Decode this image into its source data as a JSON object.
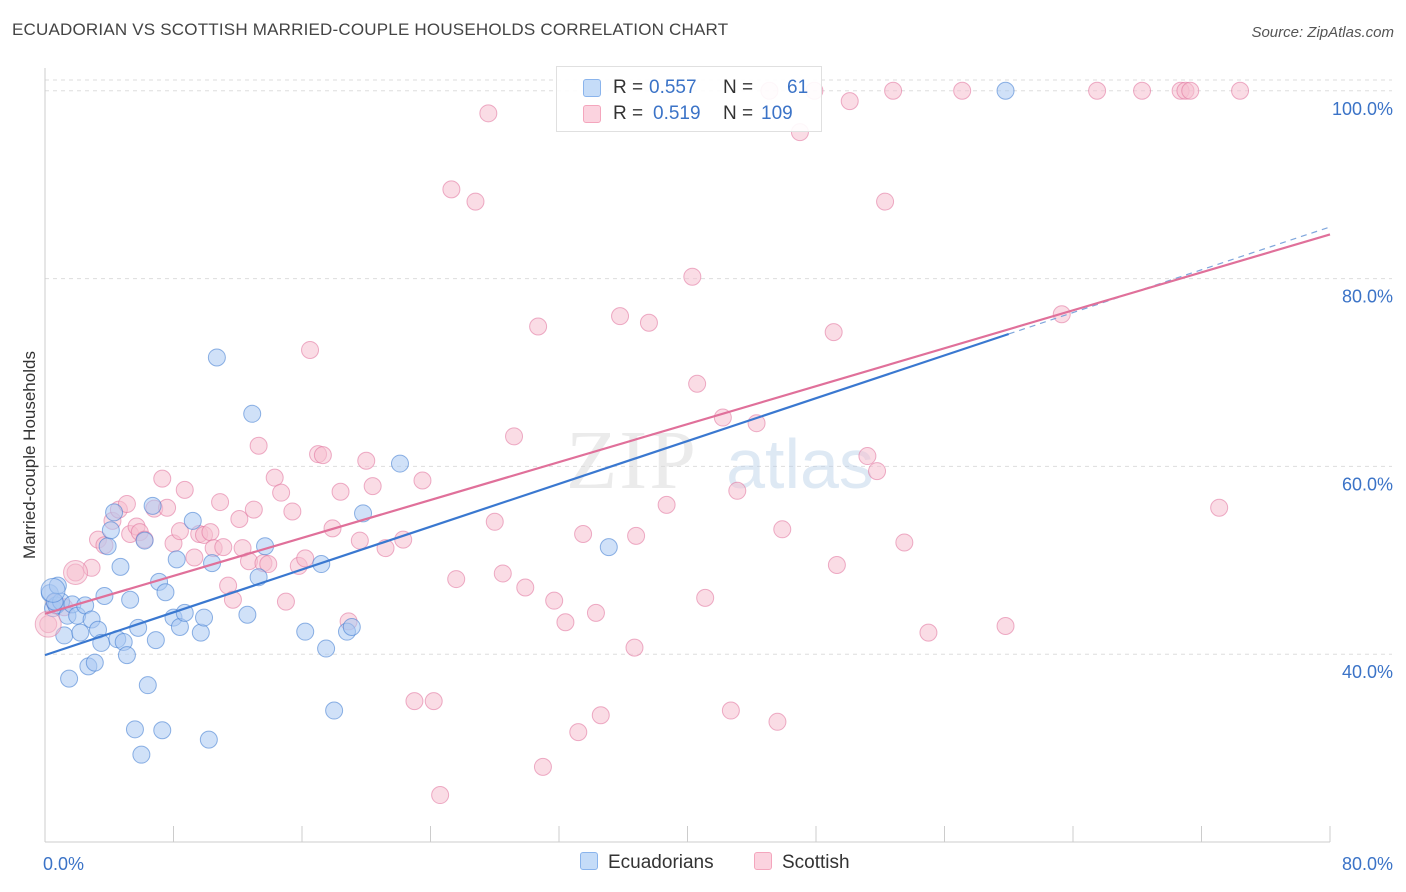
{
  "title": "ECUADORIAN VS SCOTTISH MARRIED-COUPLE HOUSEHOLDS CORRELATION CHART",
  "source": "Source: ZipAtlas.com",
  "watermark": {
    "zip": "ZIP",
    "atlas": "atlas"
  },
  "legend": {
    "rows": [
      {
        "r_label": "R =",
        "r_value": "0.557",
        "n_label": "N =",
        "n_value": "61",
        "color": "#8ab4ec"
      },
      {
        "r_label": "R =",
        "r_value": "0.519",
        "n_label": "N =",
        "n_value": "109",
        "color": "#f4a6bd"
      }
    ]
  },
  "bottom_legend": [
    {
      "label": "Ecuadorians",
      "color": "#8ab4ec"
    },
    {
      "label": "Scottish",
      "color": "#f4a6bd"
    }
  ],
  "chart_data": {
    "type": "scatter",
    "ylabel": "Married-couple Households",
    "xlim": [
      0,
      80
    ],
    "ylim": [
      20,
      102
    ],
    "x_tick_labels": [
      "0.0%",
      "80.0%"
    ],
    "y_ticks": [
      40,
      60,
      80,
      100
    ],
    "y_tick_labels": [
      "40.0%",
      "60.0%",
      "80.0%",
      "100.0%"
    ],
    "grid": true,
    "series": [
      {
        "name": "Ecuadorians",
        "color": "#3a78d0",
        "fill": "#a9c8f2",
        "trend": {
          "x0": 0,
          "y0": 39.9,
          "x1": 60,
          "y1": 74.1
        },
        "points": [
          [
            0.3,
            46.5
          ],
          [
            0.5,
            44.9
          ],
          [
            0.7,
            45.2
          ],
          [
            0.8,
            47.3
          ],
          [
            1.0,
            45.6
          ],
          [
            1.2,
            42.0
          ],
          [
            1.4,
            44.1
          ],
          [
            1.5,
            37.4
          ],
          [
            1.7,
            45.3
          ],
          [
            2.0,
            44.1
          ],
          [
            2.2,
            42.3
          ],
          [
            2.5,
            45.2
          ],
          [
            2.7,
            38.7
          ],
          [
            2.9,
            43.7
          ],
          [
            3.1,
            39.1
          ],
          [
            3.3,
            42.6
          ],
          [
            3.5,
            41.2
          ],
          [
            3.7,
            46.2
          ],
          [
            3.9,
            51.5
          ],
          [
            4.1,
            53.2
          ],
          [
            4.3,
            55.1
          ],
          [
            4.5,
            41.6
          ],
          [
            4.7,
            49.3
          ],
          [
            4.9,
            41.3
          ],
          [
            5.1,
            39.9
          ],
          [
            5.3,
            45.8
          ],
          [
            5.6,
            32.0
          ],
          [
            5.8,
            42.8
          ],
          [
            6.0,
            29.3
          ],
          [
            6.2,
            52.1
          ],
          [
            6.4,
            36.7
          ],
          [
            6.7,
            55.8
          ],
          [
            6.9,
            41.5
          ],
          [
            7.1,
            47.7
          ],
          [
            7.3,
            31.9
          ],
          [
            7.5,
            46.6
          ],
          [
            8.0,
            43.9
          ],
          [
            8.2,
            50.1
          ],
          [
            8.4,
            42.9
          ],
          [
            8.7,
            44.4
          ],
          [
            9.2,
            54.2
          ],
          [
            9.7,
            42.3
          ],
          [
            9.9,
            43.9
          ],
          [
            10.2,
            30.9
          ],
          [
            10.4,
            49.7
          ],
          [
            10.7,
            71.6
          ],
          [
            12.6,
            44.2
          ],
          [
            12.9,
            65.6
          ],
          [
            13.3,
            48.2
          ],
          [
            13.7,
            51.5
          ],
          [
            16.2,
            42.4
          ],
          [
            17.2,
            49.6
          ],
          [
            17.5,
            40.6
          ],
          [
            18.0,
            34.0
          ],
          [
            18.8,
            42.4
          ],
          [
            19.1,
            42.9
          ],
          [
            19.8,
            55.0
          ],
          [
            22.1,
            60.3
          ],
          [
            35.1,
            51.4
          ],
          [
            59.8,
            100.0
          ],
          [
            0.6,
            45.6
          ]
        ]
      },
      {
        "name": "Scottish",
        "color": "#e0709a",
        "fill": "#f6bfd0",
        "trend": {
          "x0": 0,
          "y0": 44.3,
          "x1": 80,
          "y1": 84.7
        },
        "trend_ext": {
          "x0": 60,
          "y0": 74.1,
          "x1": 80,
          "y1": 85.5
        },
        "points": [
          [
            0.2,
            43.2
          ],
          [
            0.6,
            45.5
          ],
          [
            1.2,
            45.0
          ],
          [
            1.9,
            48.7
          ],
          [
            2.9,
            49.2
          ],
          [
            3.3,
            52.2
          ],
          [
            3.7,
            51.6
          ],
          [
            4.2,
            54.2
          ],
          [
            4.6,
            55.4
          ],
          [
            5.1,
            56.0
          ],
          [
            5.3,
            52.8
          ],
          [
            5.7,
            53.6
          ],
          [
            5.9,
            53.0
          ],
          [
            6.2,
            52.2
          ],
          [
            6.8,
            55.5
          ],
          [
            7.3,
            58.7
          ],
          [
            7.6,
            55.6
          ],
          [
            8.0,
            51.8
          ],
          [
            8.4,
            53.1
          ],
          [
            8.7,
            57.5
          ],
          [
            9.3,
            50.3
          ],
          [
            9.6,
            52.8
          ],
          [
            9.9,
            52.7
          ],
          [
            10.3,
            53.0
          ],
          [
            10.5,
            51.3
          ],
          [
            10.9,
            56.2
          ],
          [
            11.1,
            51.4
          ],
          [
            11.4,
            47.3
          ],
          [
            11.7,
            45.8
          ],
          [
            12.1,
            54.4
          ],
          [
            12.3,
            51.3
          ],
          [
            12.7,
            49.9
          ],
          [
            13.0,
            55.4
          ],
          [
            13.3,
            62.2
          ],
          [
            13.6,
            49.7
          ],
          [
            13.9,
            49.6
          ],
          [
            14.3,
            58.8
          ],
          [
            14.7,
            57.2
          ],
          [
            15.0,
            45.6
          ],
          [
            15.4,
            55.2
          ],
          [
            15.8,
            49.4
          ],
          [
            16.2,
            50.2
          ],
          [
            16.5,
            72.4
          ],
          [
            17.0,
            61.3
          ],
          [
            17.3,
            61.2
          ],
          [
            17.9,
            53.4
          ],
          [
            18.4,
            57.3
          ],
          [
            18.9,
            43.5
          ],
          [
            19.6,
            52.1
          ],
          [
            20.0,
            60.6
          ],
          [
            20.4,
            57.9
          ],
          [
            21.2,
            51.3
          ],
          [
            22.3,
            52.2
          ],
          [
            23.0,
            35.0
          ],
          [
            23.5,
            58.5
          ],
          [
            24.2,
            35.0
          ],
          [
            24.6,
            25.0
          ],
          [
            25.3,
            89.5
          ],
          [
            25.6,
            48.0
          ],
          [
            26.8,
            88.2
          ],
          [
            27.6,
            97.6
          ],
          [
            28.0,
            54.1
          ],
          [
            28.5,
            48.6
          ],
          [
            29.2,
            63.2
          ],
          [
            29.9,
            47.1
          ],
          [
            30.7,
            74.9
          ],
          [
            31.0,
            28.0
          ],
          [
            31.7,
            45.7
          ],
          [
            32.4,
            43.4
          ],
          [
            33.2,
            31.7
          ],
          [
            33.5,
            52.8
          ],
          [
            34.3,
            44.4
          ],
          [
            34.6,
            33.5
          ],
          [
            35.8,
            76.0
          ],
          [
            36.7,
            40.7
          ],
          [
            36.8,
            52.6
          ],
          [
            37.6,
            75.3
          ],
          [
            38.7,
            55.9
          ],
          [
            40.3,
            80.2
          ],
          [
            40.6,
            68.8
          ],
          [
            41.1,
            46.0
          ],
          [
            42.2,
            65.2
          ],
          [
            42.7,
            34.0
          ],
          [
            43.1,
            57.4
          ],
          [
            44.3,
            64.6
          ],
          [
            45.1,
            100.0
          ],
          [
            45.6,
            32.8
          ],
          [
            45.9,
            53.3
          ],
          [
            47.0,
            95.6
          ],
          [
            47.9,
            100.0
          ],
          [
            49.1,
            74.3
          ],
          [
            49.3,
            49.5
          ],
          [
            50.1,
            98.9
          ],
          [
            51.2,
            61.1
          ],
          [
            51.8,
            59.5
          ],
          [
            52.3,
            88.2
          ],
          [
            52.8,
            100.0
          ],
          [
            53.5,
            51.9
          ],
          [
            55.0,
            42.3
          ],
          [
            57.1,
            100.0
          ],
          [
            59.8,
            43.0
          ],
          [
            63.3,
            76.2
          ],
          [
            65.5,
            100.0
          ],
          [
            68.3,
            100.0
          ],
          [
            70.7,
            100.0
          ],
          [
            71.0,
            100.0
          ],
          [
            71.3,
            100.0
          ],
          [
            73.1,
            55.6
          ],
          [
            74.4,
            100.0
          ]
        ]
      }
    ]
  }
}
